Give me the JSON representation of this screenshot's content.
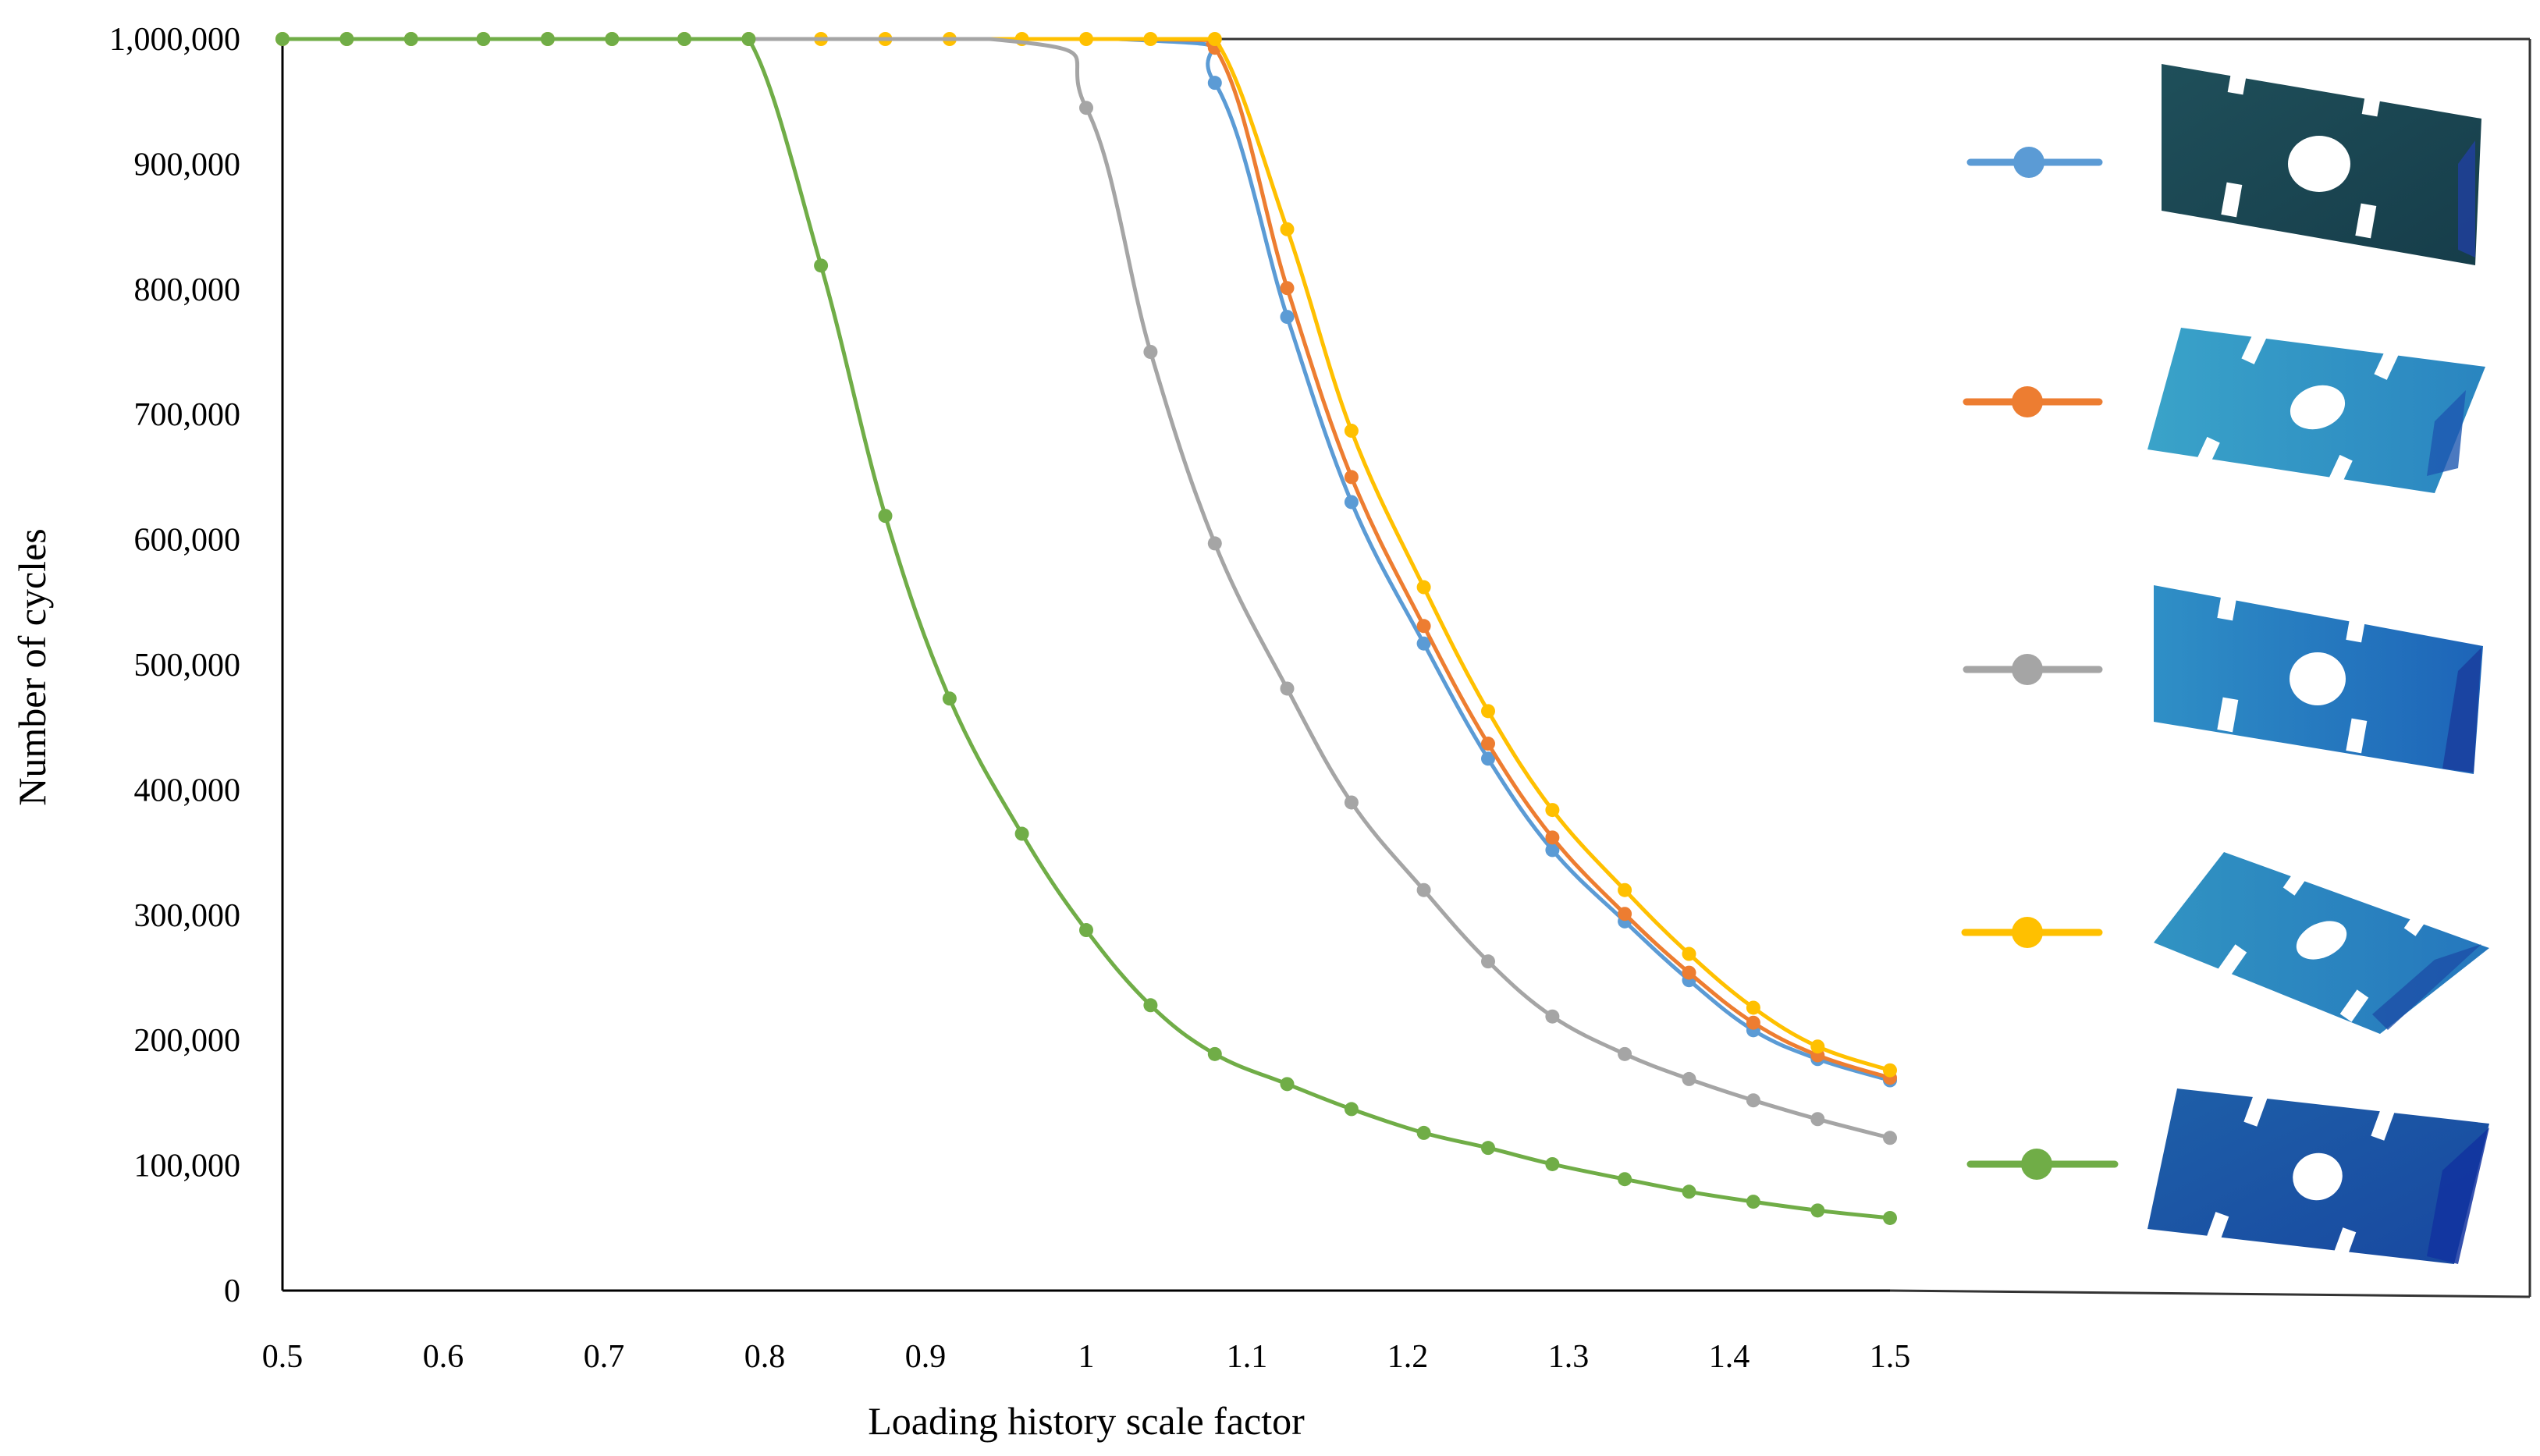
{
  "chart_data": {
    "type": "line",
    "title": "",
    "xlabel": "Loading history scale factor",
    "ylabel": "Number of cycles",
    "xlim": [
      0.5,
      1.5
    ],
    "ylim": [
      0,
      1000000
    ],
    "x_ticks": [
      "0.5",
      "0.6",
      "0.7",
      "0.8",
      "0.9",
      "1",
      "1.1",
      "1.2",
      "1.3",
      "1.4",
      "1.5"
    ],
    "y_ticks": [
      "0",
      "100,000",
      "200,000",
      "300,000",
      "400,000",
      "500,000",
      "600,000",
      "700,000",
      "800,000",
      "900,000",
      "1,000,000"
    ],
    "grid": false,
    "legend": "right, marker swatches paired with plate stress contour images",
    "legend_images": [
      "plate-with-hole-stress-contour"
    ],
    "series": [
      {
        "color": "#5B9BD5",
        "x": [
          1.08,
          1.125,
          1.165,
          1.21,
          1.25,
          1.29,
          1.335,
          1.375,
          1.415,
          1.455,
          1.5
        ],
        "y": [
          965000,
          778000,
          630000,
          517000,
          425000,
          352000,
          295000,
          248000,
          208000,
          185000,
          168000
        ]
      },
      {
        "color": "#ED7D31",
        "x": [
          1.08,
          1.125,
          1.165,
          1.21,
          1.25,
          1.29,
          1.335,
          1.375,
          1.415,
          1.455,
          1.5
        ],
        "y": [
          993000,
          801000,
          650000,
          531000,
          437000,
          362000,
          301000,
          254000,
          214000,
          188000,
          170000
        ]
      },
      {
        "color": "#FFC000",
        "x": [
          0.5,
          0.54,
          0.58,
          0.625,
          0.665,
          0.705,
          0.75,
          0.79,
          0.835,
          0.875,
          0.915,
          0.96,
          1.0,
          1.04,
          1.08,
          1.125,
          1.165,
          1.21,
          1.25,
          1.29,
          1.335,
          1.375,
          1.415,
          1.455,
          1.5
        ],
        "y": [
          1000000,
          1000000,
          1000000,
          1000000,
          1000000,
          1000000,
          1000000,
          1000000,
          1000000,
          1000000,
          1000000,
          1000000,
          1000000,
          1000000,
          1000000,
          848000,
          687000,
          562000,
          463000,
          384000,
          320000,
          269000,
          226000,
          195000,
          176000
        ]
      },
      {
        "color": "#A5A5A5",
        "x": [
          1.0,
          1.04,
          1.08,
          1.125,
          1.165,
          1.21,
          1.25,
          1.29,
          1.335,
          1.375,
          1.415,
          1.455,
          1.5
        ],
        "y": [
          945000,
          750000,
          597000,
          481000,
          390000,
          320000,
          263000,
          219000,
          189000,
          169000,
          152000,
          137000,
          122000
        ]
      },
      {
        "color": "#70AD47",
        "x": [
          0.5,
          0.54,
          0.58,
          0.625,
          0.665,
          0.705,
          0.75,
          0.79,
          0.835,
          0.875,
          0.915,
          0.96,
          1.0,
          1.04,
          1.08,
          1.125,
          1.165,
          1.21,
          1.25,
          1.29,
          1.335,
          1.375,
          1.415,
          1.455,
          1.5
        ],
        "y": [
          1000000,
          1000000,
          1000000,
          1000000,
          1000000,
          1000000,
          1000000,
          1000000,
          819000,
          619000,
          473000,
          365000,
          288000,
          228000,
          189000,
          165000,
          145000,
          126000,
          114000,
          101000,
          89000,
          79000,
          71000,
          64000,
          58000
        ]
      }
    ]
  }
}
